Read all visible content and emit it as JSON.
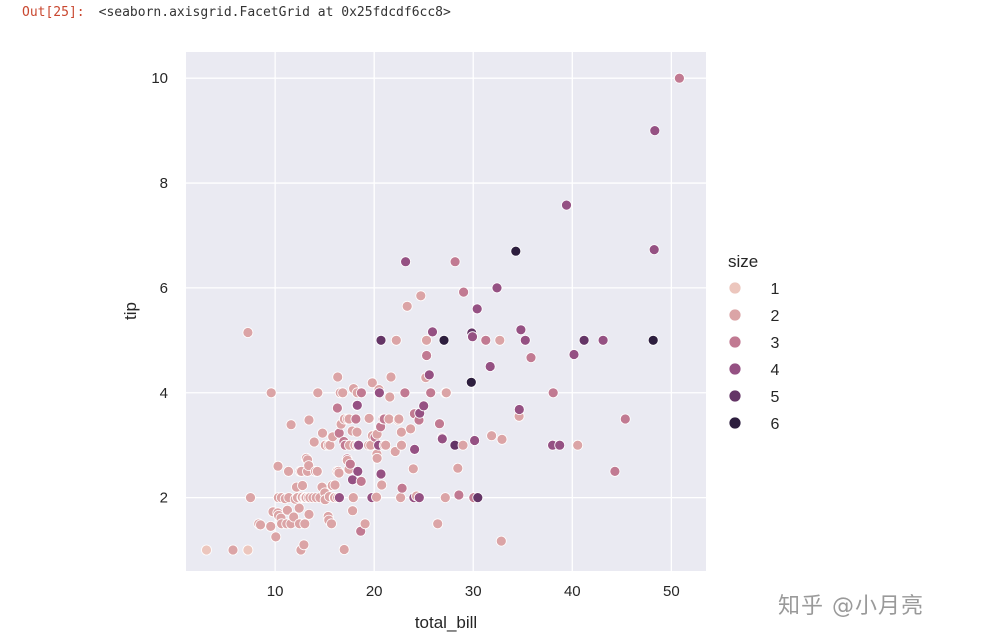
{
  "output": {
    "prompt": "Out[25]:",
    "repr": "<seaborn.axisgrid.FacetGrid at 0x25fdcdf6cc8>"
  },
  "watermark": "知乎 @小月亮",
  "chart_data": {
    "type": "scatter",
    "xlabel": "total_bill",
    "ylabel": "tip",
    "xlim": [
      1.0,
      53.5
    ],
    "ylim": [
      0.6,
      10.5
    ],
    "xticks": [
      10,
      20,
      30,
      40,
      50
    ],
    "yticks": [
      2,
      4,
      6,
      8,
      10
    ],
    "grid": true,
    "legend": {
      "title": "size",
      "placement": "right",
      "entries": [
        {
          "label": "1",
          "color": "#ecc6bd"
        },
        {
          "label": "2",
          "color": "#dba4a6"
        },
        {
          "label": "3",
          "color": "#c17a92"
        },
        {
          "label": "4",
          "color": "#955183"
        },
        {
          "label": "5",
          "color": "#643566"
        },
        {
          "label": "6",
          "color": "#2d1e3e"
        }
      ]
    },
    "points": [
      [
        3.07,
        1.0,
        1
      ],
      [
        7.25,
        1.0,
        1
      ],
      [
        7.25,
        5.15,
        2
      ],
      [
        5.75,
        1.0,
        2
      ],
      [
        7.51,
        2.0,
        2
      ],
      [
        8.35,
        1.5,
        2
      ],
      [
        8.52,
        1.48,
        2
      ],
      [
        9.55,
        1.45,
        2
      ],
      [
        9.6,
        4.0,
        2
      ],
      [
        9.78,
        1.73,
        2
      ],
      [
        10.07,
        1.25,
        2
      ],
      [
        10.33,
        2.0,
        2
      ],
      [
        10.27,
        1.71,
        2
      ],
      [
        10.34,
        1.66,
        2
      ],
      [
        10.29,
        2.6,
        2
      ],
      [
        10.59,
        1.61,
        2
      ],
      [
        10.63,
        2.0,
        2
      ],
      [
        10.65,
        1.5,
        2
      ],
      [
        11.02,
        1.98,
        2
      ],
      [
        11.17,
        1.5,
        2
      ],
      [
        11.24,
        1.76,
        2
      ],
      [
        11.35,
        2.5,
        2
      ],
      [
        11.38,
        2.0,
        2
      ],
      [
        11.59,
        1.5,
        2
      ],
      [
        11.61,
        3.39,
        2
      ],
      [
        11.87,
        1.63,
        2
      ],
      [
        12.02,
        1.97,
        2
      ],
      [
        12.16,
        2.2,
        2
      ],
      [
        12.26,
        2.0,
        2
      ],
      [
        12.43,
        1.8,
        2
      ],
      [
        12.46,
        1.5,
        2
      ],
      [
        12.54,
        2.5,
        2
      ],
      [
        12.6,
        1.0,
        2
      ],
      [
        12.66,
        2.5,
        2
      ],
      [
        12.69,
        2.0,
        2
      ],
      [
        12.74,
        2.01,
        2
      ],
      [
        12.76,
        2.23,
        2
      ],
      [
        12.9,
        1.1,
        2
      ],
      [
        12.99,
        1.5,
        2
      ],
      [
        13.0,
        2.0,
        2
      ],
      [
        13.03,
        2.0,
        2
      ],
      [
        13.13,
        2.0,
        2
      ],
      [
        13.16,
        2.75,
        2
      ],
      [
        13.27,
        2.5,
        2
      ],
      [
        13.28,
        2.72,
        2
      ],
      [
        13.37,
        2.0,
        2
      ],
      [
        13.39,
        2.61,
        2
      ],
      [
        13.42,
        3.48,
        2
      ],
      [
        13.42,
        1.68,
        2
      ],
      [
        13.51,
        2.0,
        2
      ],
      [
        13.81,
        2.0,
        2
      ],
      [
        13.94,
        3.06,
        2
      ],
      [
        14.07,
        2.5,
        2
      ],
      [
        14.15,
        2.0,
        2
      ],
      [
        14.26,
        2.5,
        2
      ],
      [
        14.31,
        4.0,
        2
      ],
      [
        14.52,
        2.0,
        2
      ],
      [
        14.73,
        2.2,
        2
      ],
      [
        14.78,
        3.23,
        2
      ],
      [
        15.01,
        2.09,
        2
      ],
      [
        15.04,
        1.96,
        2
      ],
      [
        15.06,
        3.0,
        2
      ],
      [
        15.36,
        1.64,
        2
      ],
      [
        15.38,
        3.0,
        2
      ],
      [
        15.42,
        1.57,
        2
      ],
      [
        15.48,
        2.02,
        2
      ],
      [
        15.53,
        3.0,
        2
      ],
      [
        15.69,
        1.5,
        2
      ],
      [
        15.77,
        2.23,
        2
      ],
      [
        15.81,
        3.16,
        2
      ],
      [
        15.95,
        2.0,
        2
      ],
      [
        16.0,
        2.0,
        2
      ],
      [
        16.04,
        2.24,
        2
      ],
      [
        16.27,
        2.5,
        2
      ],
      [
        16.29,
        3.71,
        3
      ],
      [
        16.31,
        2.0,
        2
      ],
      [
        16.32,
        4.3,
        2
      ],
      [
        16.4,
        2.5,
        2
      ],
      [
        16.45,
        2.47,
        2
      ],
      [
        16.47,
        3.23,
        3
      ],
      [
        16.49,
        2.0,
        4
      ],
      [
        16.58,
        4.0,
        2
      ],
      [
        16.66,
        3.4,
        2
      ],
      [
        16.82,
        4.0,
        2
      ],
      [
        16.93,
        3.07,
        3
      ],
      [
        16.97,
        1.01,
        2
      ],
      [
        16.99,
        3.5,
        2
      ],
      [
        17.07,
        3.0,
        3
      ],
      [
        17.26,
        2.74,
        3
      ],
      [
        17.29,
        2.71,
        2
      ],
      [
        17.31,
        3.5,
        2
      ],
      [
        17.46,
        2.54,
        2
      ],
      [
        17.47,
        3.5,
        2
      ],
      [
        17.51,
        3.0,
        2
      ],
      [
        17.59,
        2.64,
        3
      ],
      [
        17.78,
        3.27,
        2
      ],
      [
        17.81,
        2.34,
        4
      ],
      [
        17.82,
        1.75,
        2
      ],
      [
        17.89,
        2.0,
        2
      ],
      [
        17.92,
        4.08,
        2
      ],
      [
        18.04,
        3.0,
        2
      ],
      [
        18.15,
        3.5,
        3
      ],
      [
        18.24,
        3.76,
        2
      ],
      [
        18.26,
        3.25,
        2
      ],
      [
        18.28,
        4.0,
        2
      ],
      [
        18.29,
        3.76,
        4
      ],
      [
        18.29,
        3.0,
        2
      ],
      [
        18.35,
        2.5,
        4
      ],
      [
        18.43,
        3.0,
        4
      ],
      [
        18.64,
        1.36,
        3
      ],
      [
        18.69,
        2.31,
        3
      ],
      [
        18.71,
        4.0,
        3
      ],
      [
        19.08,
        1.5,
        2
      ],
      [
        19.44,
        3.0,
        2
      ],
      [
        19.49,
        3.51,
        2
      ],
      [
        19.65,
        3.0,
        2
      ],
      [
        19.77,
        2.0,
        4
      ],
      [
        19.81,
        4.19,
        2
      ],
      [
        19.82,
        3.18,
        2
      ],
      [
        20.08,
        3.15,
        3
      ],
      [
        20.23,
        2.01,
        2
      ],
      [
        20.27,
        2.83,
        2
      ],
      [
        20.29,
        2.75,
        2
      ],
      [
        20.29,
        3.21,
        2
      ],
      [
        20.45,
        3.0,
        4
      ],
      [
        20.49,
        4.06,
        2
      ],
      [
        20.53,
        4.0,
        4
      ],
      [
        20.65,
        3.35,
        3
      ],
      [
        20.69,
        2.45,
        4
      ],
      [
        20.69,
        5.0,
        5
      ],
      [
        20.76,
        2.24,
        2
      ],
      [
        20.9,
        3.5,
        3
      ],
      [
        21.01,
        3.5,
        3
      ],
      [
        21.01,
        3.0,
        2
      ],
      [
        21.16,
        3.0,
        2
      ],
      [
        21.5,
        3.5,
        2
      ],
      [
        21.58,
        3.92,
        2
      ],
      [
        21.7,
        4.3,
        2
      ],
      [
        22.12,
        2.88,
        2
      ],
      [
        22.23,
        5.0,
        2
      ],
      [
        22.42,
        3.48,
        2
      ],
      [
        22.49,
        3.5,
        2
      ],
      [
        22.67,
        2.0,
        2
      ],
      [
        22.75,
        3.25,
        2
      ],
      [
        22.76,
        3.0,
        2
      ],
      [
        22.82,
        2.18,
        3
      ],
      [
        23.1,
        4.0,
        3
      ],
      [
        23.17,
        6.5,
        4
      ],
      [
        23.33,
        5.65,
        2
      ],
      [
        23.68,
        3.31,
        2
      ],
      [
        23.95,
        2.55,
        2
      ],
      [
        24.01,
        2.0,
        4
      ],
      [
        24.06,
        3.6,
        3
      ],
      [
        24.08,
        2.92,
        4
      ],
      [
        24.27,
        2.03,
        2
      ],
      [
        24.52,
        3.48,
        3
      ],
      [
        24.55,
        2.0,
        4
      ],
      [
        24.59,
        3.61,
        4
      ],
      [
        24.71,
        5.85,
        2
      ],
      [
        25.0,
        3.75,
        4
      ],
      [
        25.21,
        4.29,
        2
      ],
      [
        25.28,
        5.0,
        2
      ],
      [
        25.29,
        4.71,
        3
      ],
      [
        25.56,
        4.34,
        4
      ],
      [
        25.71,
        4.0,
        3
      ],
      [
        25.89,
        5.16,
        4
      ],
      [
        26.41,
        1.5,
        2
      ],
      [
        26.59,
        3.41,
        3
      ],
      [
        26.86,
        3.14,
        2
      ],
      [
        26.88,
        3.12,
        4
      ],
      [
        27.05,
        5.0,
        6
      ],
      [
        27.18,
        2.0,
        2
      ],
      [
        27.2,
        4.0,
        4
      ],
      [
        27.28,
        4.0,
        2
      ],
      [
        28.15,
        3.0,
        5
      ],
      [
        28.17,
        6.5,
        3
      ],
      [
        28.44,
        2.56,
        2
      ],
      [
        28.55,
        2.05,
        3
      ],
      [
        28.97,
        3.0,
        2
      ],
      [
        29.03,
        5.92,
        3
      ],
      [
        29.8,
        4.2,
        6
      ],
      [
        29.85,
        5.14,
        5
      ],
      [
        29.93,
        5.07,
        4
      ],
      [
        30.06,
        2.0,
        3
      ],
      [
        30.14,
        3.09,
        4
      ],
      [
        30.4,
        5.6,
        4
      ],
      [
        30.46,
        2.0,
        5
      ],
      [
        31.27,
        5.0,
        3
      ],
      [
        31.71,
        4.5,
        4
      ],
      [
        31.85,
        3.18,
        2
      ],
      [
        32.4,
        6.0,
        4
      ],
      [
        32.68,
        5.0,
        2
      ],
      [
        32.83,
        1.17,
        2
      ],
      [
        32.9,
        3.11,
        2
      ],
      [
        34.3,
        6.7,
        6
      ],
      [
        34.63,
        3.55,
        2
      ],
      [
        34.65,
        3.68,
        4
      ],
      [
        34.81,
        5.2,
        4
      ],
      [
        35.26,
        5.0,
        4
      ],
      [
        35.83,
        4.67,
        3
      ],
      [
        38.01,
        3.0,
        4
      ],
      [
        38.07,
        4.0,
        3
      ],
      [
        38.73,
        3.0,
        4
      ],
      [
        39.42,
        7.58,
        4
      ],
      [
        40.17,
        4.73,
        4
      ],
      [
        40.55,
        3.0,
        2
      ],
      [
        41.19,
        5.0,
        5
      ],
      [
        43.11,
        5.0,
        4
      ],
      [
        44.3,
        2.5,
        3
      ],
      [
        45.35,
        3.5,
        3
      ],
      [
        48.17,
        5.0,
        6
      ],
      [
        48.27,
        6.73,
        4
      ],
      [
        48.33,
        9.0,
        4
      ],
      [
        50.81,
        10.0,
        3
      ]
    ]
  }
}
